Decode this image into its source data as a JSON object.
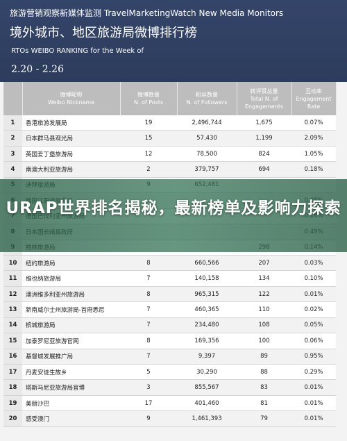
{
  "header": {
    "source": "旅游营销观察新媒体监测 TravelMarketingWatch New Media Monitors",
    "title": "境外城市、地区旅游局微博排行榜",
    "subtitle": "RTOs WEIBO RANKING for the Week of",
    "date_range": "2.20 - 2.26"
  },
  "table": {
    "columns": [
      {
        "zh": "",
        "en": ""
      },
      {
        "zh": "微博昵称",
        "en": "Weibo Nickname"
      },
      {
        "zh": "微博数量",
        "en": "N. of Posts"
      },
      {
        "zh": "粉丝数量",
        "en": "N. of Followers"
      },
      {
        "zh": "转评赞总量",
        "en": "Total N. of Engagements"
      },
      {
        "zh": "互动率",
        "en": "Engagement Rate"
      }
    ],
    "rows": [
      {
        "rank": "1",
        "name": "香港旅游发展局",
        "posts": "19",
        "followers": "2,496,744",
        "engagements": "1,675",
        "rate": "0.07%"
      },
      {
        "rank": "2",
        "name": "日本群马县观光局",
        "posts": "15",
        "followers": "57,430",
        "engagements": "1,199",
        "rate": "2.09%"
      },
      {
        "rank": "3",
        "name": "英国爱丁堡旅游局",
        "posts": "12",
        "followers": "78,500",
        "engagements": "824",
        "rate": "1.05%"
      },
      {
        "rank": "4",
        "name": "南澳大利亚旅游局",
        "posts": "2",
        "followers": "379,757",
        "engagements": "694",
        "rate": "0.18%"
      },
      {
        "rank": "5",
        "name": "迪拜旅游局",
        "posts": "9",
        "followers": "652,481",
        "engagements": "",
        "rate": ""
      },
      {
        "rank": "6",
        "name": "韩国江原道旅游局",
        "posts": "",
        "followers": "",
        "engagements": "",
        "rate": "0.05%"
      },
      {
        "rank": "7",
        "name": "德国巴伐利亚州旅游局",
        "posts": "",
        "followers": "",
        "engagements": "",
        "rate": "0.16%"
      },
      {
        "rank": "8",
        "name": "日本国长崎县政府",
        "posts": "",
        "followers": "",
        "engagements": "",
        "rate": "0.49%"
      },
      {
        "rank": "9",
        "name": "柏林旅游局",
        "posts": "",
        "followers": "",
        "engagements": "298",
        "rate": "0.14%"
      },
      {
        "rank": "10",
        "name": "纽约旅游局",
        "posts": "8",
        "followers": "660,566",
        "engagements": "207",
        "rate": "0.03%"
      },
      {
        "rank": "11",
        "name": "维也纳旅游局",
        "posts": "7",
        "followers": "140,158",
        "engagements": "134",
        "rate": "0.10%"
      },
      {
        "rank": "12",
        "name": "澳洲维多利亚州旅游局",
        "posts": "8",
        "followers": "965,315",
        "engagements": "122",
        "rate": "0.01%"
      },
      {
        "rank": "13",
        "name": "新南威尔士州旅游局-首府悉尼",
        "posts": "7",
        "followers": "460,365",
        "engagements": "110",
        "rate": "0.02%"
      },
      {
        "rank": "14",
        "name": "槟城旅游局",
        "posts": "7",
        "followers": "234,480",
        "engagements": "108",
        "rate": "0.05%"
      },
      {
        "rank": "15",
        "name": "加泰罗尼亚旅游官网",
        "posts": "8",
        "followers": "169,356",
        "engagements": "100",
        "rate": "0.06%"
      },
      {
        "rank": "16",
        "name": "基督城发展推广局",
        "posts": "7",
        "followers": "9,397",
        "engagements": "89",
        "rate": "0.95%"
      },
      {
        "rank": "17",
        "name": "丹麦安徒生故乡",
        "posts": "5",
        "followers": "30,290",
        "engagements": "88",
        "rate": "0.29%"
      },
      {
        "rank": "18",
        "name": "塔斯马尼亚旅游局官博",
        "posts": "3",
        "followers": "855,567",
        "engagements": "83",
        "rate": "0.01%"
      },
      {
        "rank": "19",
        "name": "美丽沙巴",
        "posts": "17",
        "followers": "401,460",
        "engagements": "81",
        "rate": "0.01%"
      },
      {
        "rank": "20",
        "name": "感受澳门",
        "posts": "9",
        "followers": "1,461,393",
        "engagements": "79",
        "rate": "0.01%"
      }
    ]
  },
  "overlay": {
    "headline": "URAP世界排名揭秘，最新榜单及影响力探索"
  }
}
